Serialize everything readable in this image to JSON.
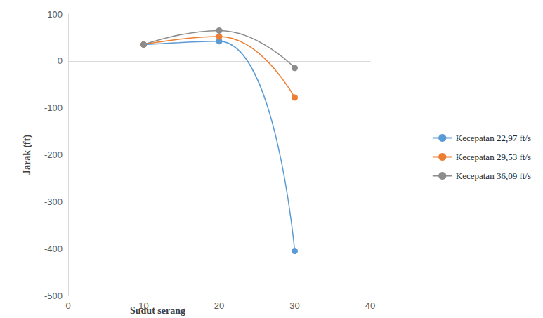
{
  "chart_data": {
    "type": "line",
    "x_label": "Sudut serang",
    "y_label": "Jarak (ft)",
    "x": [
      10,
      20,
      30
    ],
    "series": [
      {
        "name": "Kecepatan 22,97 ft/s",
        "color": "#5b9bd5",
        "marker": "circle",
        "line_style": "solid",
        "values": [
          35,
          42,
          -405
        ]
      },
      {
        "name": "Kecepatan 29,53 ft/s",
        "color": "#ed7d31",
        "marker": "circle",
        "line_style": "solid",
        "values": [
          35,
          52,
          -78
        ]
      },
      {
        "name": "Kecepatan 36,09 ft/s",
        "color": "#8c8c8c",
        "marker": "circle",
        "line_style": "solid",
        "values": [
          35,
          65,
          -15
        ]
      }
    ],
    "xlim": [
      0,
      40
    ],
    "xticks": [
      0,
      10,
      20,
      30,
      40
    ],
    "ylim": [
      -500,
      100
    ],
    "yticks": [
      -500,
      -400,
      -300,
      -200,
      -100,
      0,
      100
    ],
    "grid": false,
    "legend": "right"
  }
}
